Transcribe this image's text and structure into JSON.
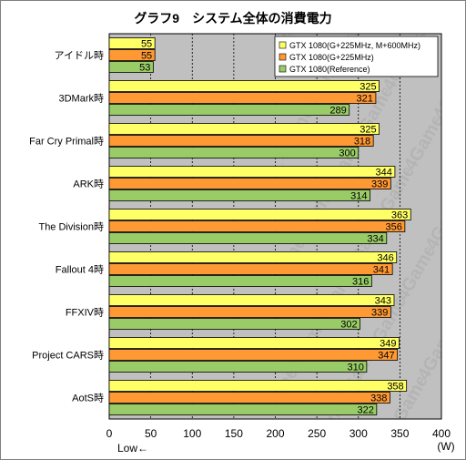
{
  "chart_data": {
    "type": "bar",
    "orientation": "horizontal",
    "title": "グラフ9　システム全体の消費電力",
    "categories": [
      "アイドル時",
      "3DMark時",
      "Far Cry Primal時",
      "ARK時",
      "The Division時",
      "Fallout 4時",
      "FFXIV時",
      "Project CARS時",
      "AotS時"
    ],
    "series": [
      {
        "name": "GTX 1080(G+225MHz, M+600MHz)",
        "color": "#ffff66",
        "values": [
          55,
          325,
          325,
          344,
          363,
          346,
          343,
          349,
          358
        ]
      },
      {
        "name": "GTX 1080(G+225MHz)",
        "color": "#ff9933",
        "values": [
          55,
          321,
          318,
          339,
          356,
          341,
          339,
          347,
          338
        ]
      },
      {
        "name": "GTX 1080(Reference)",
        "color": "#99cc66",
        "values": [
          53,
          289,
          300,
          314,
          334,
          316,
          302,
          310,
          322
        ]
      }
    ],
    "xlim": [
      0,
      400
    ],
    "xticks": [
      0,
      50,
      100,
      150,
      200,
      250,
      300,
      350,
      400
    ],
    "unit_label": "(W)",
    "direction_note": "Low←",
    "grid": true,
    "legend_position": "top-right",
    "watermark": "4Gamer.net"
  }
}
